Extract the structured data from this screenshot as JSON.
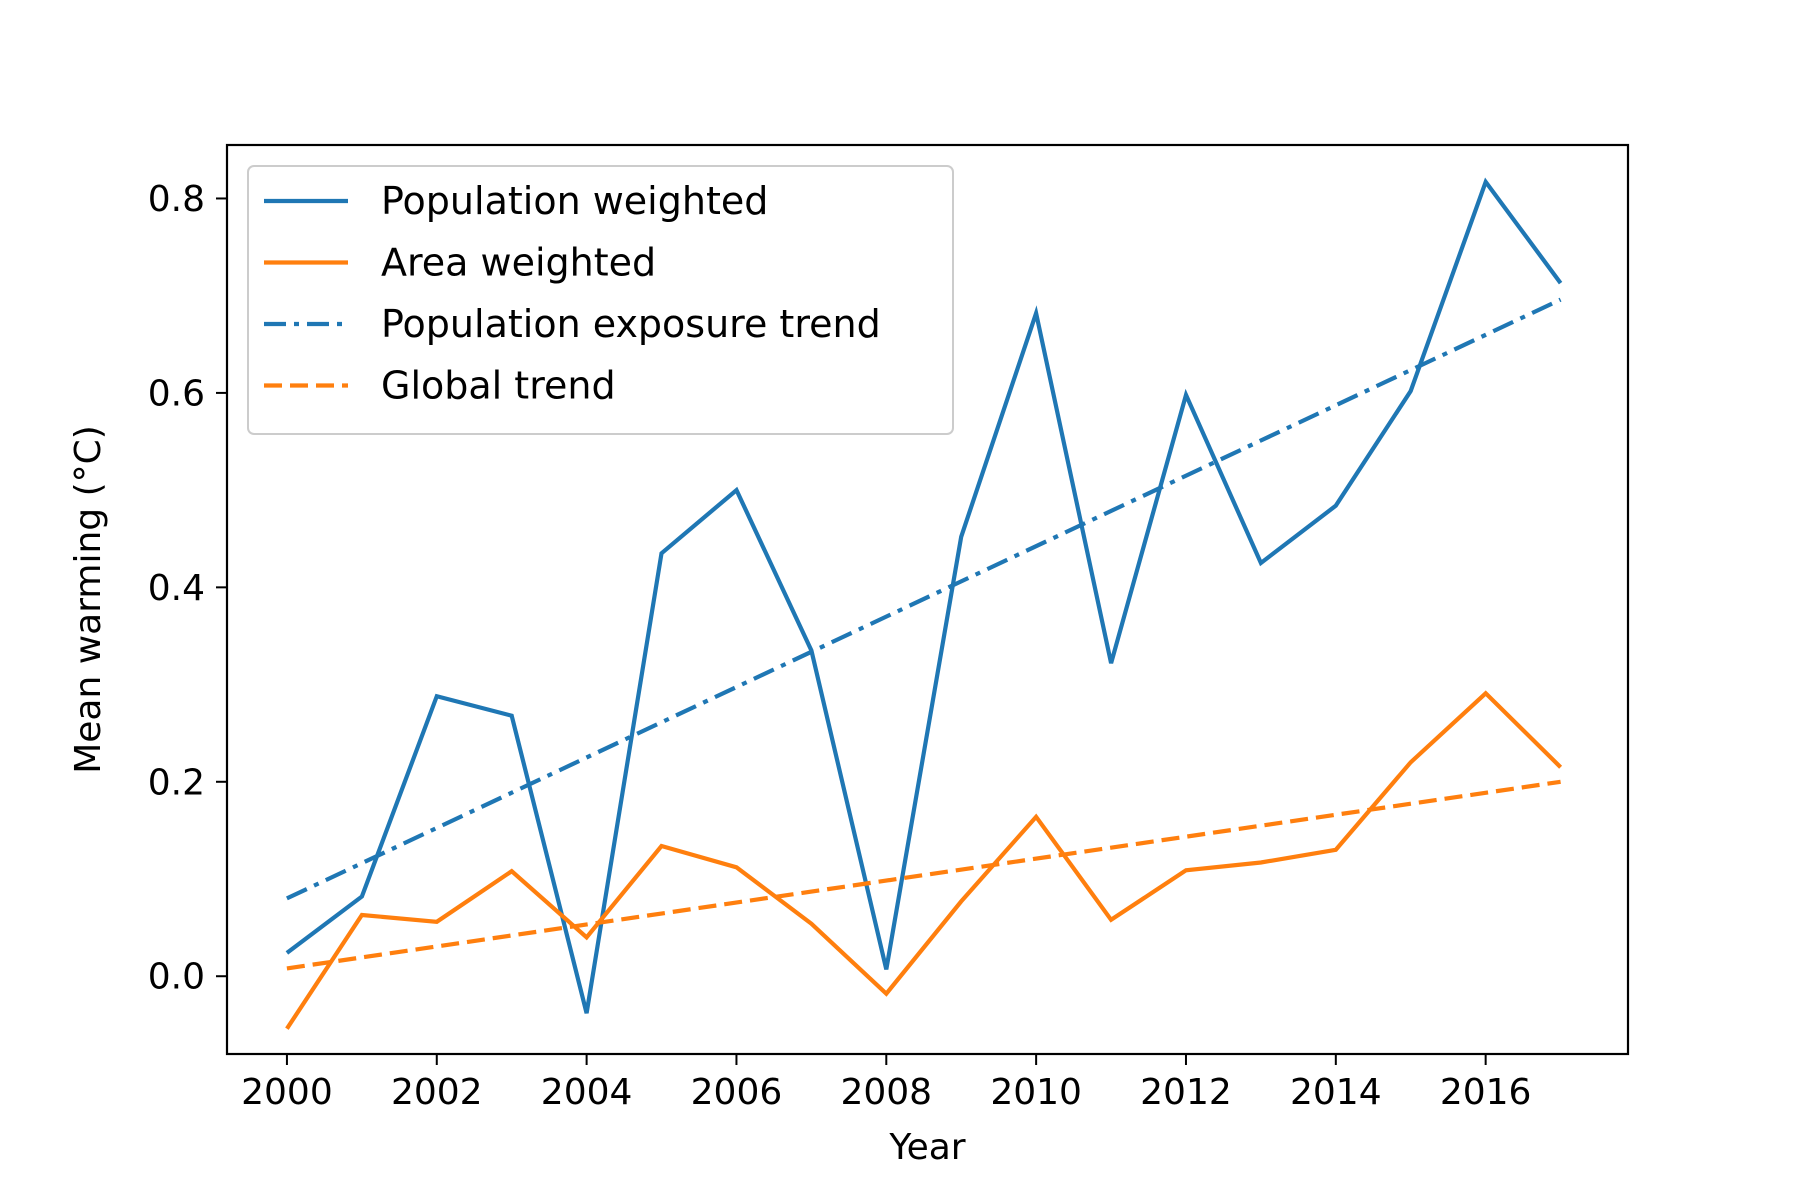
{
  "chart_data": {
    "type": "line",
    "title": "",
    "xlabel": "Year",
    "ylabel": "Mean warming (°C)",
    "xlim": [
      1999.2,
      2017.9
    ],
    "ylim": [
      -0.08,
      0.855
    ],
    "xticks": [
      2000,
      2002,
      2004,
      2006,
      2008,
      2010,
      2012,
      2014,
      2016
    ],
    "yticks": [
      0.0,
      0.2,
      0.4,
      0.6,
      0.8
    ],
    "ytick_labels": [
      "0.0",
      "0.2",
      "0.4",
      "0.6",
      "0.8"
    ],
    "grid": false,
    "legend_position": "upper-left",
    "x": [
      2000,
      2001,
      2002,
      2003,
      2004,
      2005,
      2006,
      2007,
      2008,
      2009,
      2010,
      2011,
      2012,
      2013,
      2014,
      2015,
      2016,
      2017
    ],
    "series": [
      {
        "name": "Population weighted",
        "color": "#1f77b4",
        "style": "solid",
        "values": [
          0.024,
          0.082,
          0.288,
          0.268,
          -0.038,
          0.435,
          0.5,
          0.335,
          0.007,
          0.452,
          0.682,
          0.322,
          0.598,
          0.425,
          0.484,
          0.602,
          0.817,
          0.713
        ]
      },
      {
        "name": "Area weighted",
        "color": "#ff7f0e",
        "style": "solid",
        "values": [
          -0.054,
          0.063,
          0.056,
          0.108,
          0.04,
          0.134,
          0.112,
          0.054,
          -0.018,
          0.077,
          0.164,
          0.058,
          0.109,
          0.117,
          0.13,
          0.22,
          0.291,
          0.215
        ]
      },
      {
        "name": "Population exposure trend",
        "color": "#1f77b4",
        "style": "dashdot",
        "trend": true,
        "x": [
          2000,
          2017
        ],
        "values": [
          0.08,
          0.696
        ]
      },
      {
        "name": "Global trend",
        "color": "#ff7f0e",
        "style": "dashed",
        "trend": true,
        "x": [
          2000,
          2017
        ],
        "values": [
          0.008,
          0.2
        ]
      }
    ]
  }
}
